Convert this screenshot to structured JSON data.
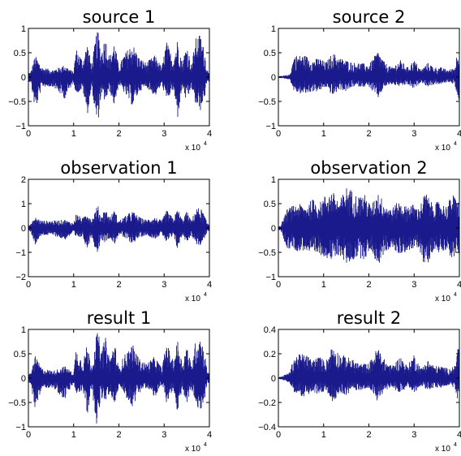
{
  "figure": {
    "x_multiplier": {
      "base": "x 10",
      "exponent": "4"
    }
  },
  "chart_data": [
    {
      "type": "line",
      "title": "source 1",
      "xlim": [
        0,
        4
      ],
      "ylim": [
        -1,
        1
      ],
      "x_ticks": [
        "0",
        "1",
        "2",
        "3",
        "4"
      ],
      "y_ticks": [
        "−1",
        "−0.5",
        "0",
        "0.5",
        "1"
      ],
      "y_tick_values": [
        -1,
        -0.5,
        0,
        0.5,
        1
      ],
      "color": "#1a1a8c",
      "envelope": {
        "x": [
          0.05,
          0.15,
          0.3,
          0.55,
          0.8,
          1.0,
          1.05,
          1.2,
          1.3,
          1.4,
          1.5,
          1.55,
          1.6,
          1.7,
          1.8,
          1.9,
          2.0,
          2.1,
          2.3,
          2.45,
          2.6,
          2.8,
          2.95,
          3.05,
          3.2,
          3.3,
          3.4,
          3.5,
          3.6,
          3.7,
          3.8,
          3.9,
          3.95
        ],
        "upper": [
          0.1,
          0.45,
          0.2,
          0.15,
          0.25,
          0.1,
          0.6,
          0.35,
          0.7,
          0.25,
          0.9,
          0.95,
          0.5,
          0.85,
          0.4,
          0.75,
          0.2,
          0.45,
          0.7,
          0.4,
          0.3,
          0.45,
          0.2,
          0.75,
          0.35,
          0.8,
          0.3,
          0.7,
          0.25,
          0.8,
          0.9,
          0.5,
          0.15
        ],
        "lower": [
          -0.1,
          -0.7,
          -0.2,
          -0.2,
          -0.45,
          -0.1,
          -0.35,
          -0.25,
          -0.8,
          -0.2,
          -0.95,
          -0.85,
          -0.4,
          -0.5,
          -0.3,
          -0.6,
          -0.15,
          -0.3,
          -0.6,
          -0.3,
          -0.2,
          -0.4,
          -0.15,
          -0.5,
          -0.25,
          -0.85,
          -0.2,
          -0.55,
          -0.2,
          -0.6,
          -0.7,
          -0.4,
          -0.1
        ]
      }
    },
    {
      "type": "line",
      "title": "source 2",
      "xlim": [
        0,
        4
      ],
      "ylim": [
        -1,
        1
      ],
      "x_ticks": [
        "0",
        "1",
        "2",
        "3",
        "4"
      ],
      "y_ticks": [
        "−1",
        "−0.5",
        "0",
        "0.5",
        "1"
      ],
      "y_tick_values": [
        -1,
        -0.5,
        0,
        0.5,
        1
      ],
      "color": "#1a1a8c",
      "envelope": {
        "x": [
          0.05,
          0.25,
          0.35,
          0.5,
          0.6,
          0.75,
          0.9,
          1.05,
          1.2,
          1.35,
          1.5,
          1.65,
          1.8,
          2.0,
          2.2,
          2.35,
          2.5,
          2.7,
          2.85,
          3.0,
          3.15,
          3.3,
          3.45,
          3.6,
          3.75,
          3.9,
          3.98
        ],
        "upper": [
          0.02,
          0.05,
          0.45,
          0.45,
          0.45,
          0.35,
          0.4,
          0.3,
          0.5,
          0.4,
          0.35,
          0.3,
          0.3,
          0.25,
          0.55,
          0.3,
          0.2,
          0.35,
          0.2,
          0.35,
          0.15,
          0.3,
          0.2,
          0.2,
          0.15,
          0.2,
          0.7
        ],
        "lower": [
          -0.02,
          -0.05,
          -0.3,
          -0.35,
          -0.35,
          -0.3,
          -0.3,
          -0.2,
          -0.4,
          -0.25,
          -0.3,
          -0.2,
          -0.2,
          -0.2,
          -0.45,
          -0.2,
          -0.15,
          -0.2,
          -0.15,
          -0.25,
          -0.1,
          -0.2,
          -0.15,
          -0.15,
          -0.1,
          -0.15,
          -0.6
        ]
      }
    },
    {
      "type": "line",
      "title": "observation 1",
      "xlim": [
        0,
        4
      ],
      "ylim": [
        -2,
        2
      ],
      "x_ticks": [
        "0",
        "1",
        "2",
        "3",
        "4"
      ],
      "y_ticks": [
        "−2",
        "−1",
        "0",
        "1",
        "2"
      ],
      "y_tick_values": [
        -2,
        -1,
        0,
        1,
        2
      ],
      "color": "#1a1a8c",
      "envelope": {
        "x": [
          0.05,
          0.15,
          0.3,
          0.55,
          0.8,
          1.0,
          1.05,
          1.2,
          1.3,
          1.4,
          1.5,
          1.55,
          1.6,
          1.7,
          1.8,
          1.9,
          2.0,
          2.1,
          2.3,
          2.45,
          2.6,
          2.8,
          2.95,
          3.05,
          3.2,
          3.3,
          3.4,
          3.5,
          3.6,
          3.7,
          3.8,
          3.9,
          3.95
        ],
        "upper": [
          0.15,
          0.45,
          0.3,
          0.3,
          0.35,
          0.2,
          0.6,
          0.4,
          0.7,
          0.35,
          0.85,
          0.9,
          0.5,
          0.8,
          0.45,
          0.75,
          0.3,
          0.45,
          0.7,
          0.45,
          0.35,
          0.45,
          0.3,
          0.75,
          0.4,
          0.8,
          0.35,
          0.7,
          0.3,
          0.8,
          0.85,
          0.5,
          0.2
        ],
        "lower": [
          -0.15,
          -0.7,
          -0.3,
          -0.3,
          -0.5,
          -0.2,
          -0.45,
          -0.35,
          -0.9,
          -0.3,
          -1.05,
          -0.95,
          -0.45,
          -0.6,
          -0.4,
          -0.7,
          -0.25,
          -0.4,
          -0.65,
          -0.4,
          -0.3,
          -0.45,
          -0.25,
          -0.6,
          -0.35,
          -0.9,
          -0.3,
          -0.6,
          -0.3,
          -0.65,
          -0.75,
          -0.45,
          -0.15
        ]
      }
    },
    {
      "type": "line",
      "title": "observation 2",
      "xlim": [
        0,
        4
      ],
      "ylim": [
        -1,
        1
      ],
      "x_ticks": [
        "0",
        "1",
        "2",
        "3",
        "4"
      ],
      "y_ticks": [
        "−1",
        "−0.5",
        "0",
        "0.5",
        "1"
      ],
      "y_tick_values": [
        -1,
        -0.5,
        0,
        0.5,
        1
      ],
      "color": "#1a1a8c",
      "envelope": {
        "x": [
          0.05,
          0.2,
          0.3,
          0.45,
          0.6,
          0.75,
          0.9,
          1.05,
          1.2,
          1.35,
          1.5,
          1.6,
          1.75,
          1.9,
          2.05,
          2.2,
          2.35,
          2.5,
          2.65,
          2.8,
          2.95,
          3.1,
          3.25,
          3.4,
          3.55,
          3.7,
          3.85,
          3.98
        ],
        "upper": [
          0.05,
          0.4,
          0.45,
          0.5,
          0.45,
          0.6,
          0.5,
          0.7,
          0.75,
          0.55,
          0.85,
          0.8,
          0.65,
          0.7,
          0.45,
          0.75,
          0.5,
          0.4,
          0.55,
          0.45,
          0.5,
          0.4,
          0.75,
          0.5,
          0.55,
          0.45,
          0.7,
          0.55
        ],
        "lower": [
          -0.05,
          -0.45,
          -0.4,
          -0.5,
          -0.45,
          -0.6,
          -0.55,
          -0.6,
          -0.7,
          -0.55,
          -0.75,
          -0.7,
          -0.6,
          -0.65,
          -0.45,
          -0.8,
          -0.5,
          -0.4,
          -0.55,
          -0.5,
          -0.45,
          -0.4,
          -0.85,
          -0.5,
          -0.5,
          -0.45,
          -0.65,
          -0.55
        ]
      }
    },
    {
      "type": "line",
      "title": "result 1",
      "xlim": [
        0,
        4
      ],
      "ylim": [
        -1,
        1
      ],
      "x_ticks": [
        "0",
        "1",
        "2",
        "3",
        "4"
      ],
      "y_ticks": [
        "−1",
        "−0.5",
        "0",
        "0.5",
        "1"
      ],
      "y_tick_values": [
        -1,
        -0.5,
        0,
        0.5,
        1
      ],
      "color": "#1a1a8c",
      "envelope": {
        "x": [
          0.05,
          0.15,
          0.3,
          0.55,
          0.8,
          1.0,
          1.05,
          1.2,
          1.3,
          1.4,
          1.5,
          1.55,
          1.6,
          1.7,
          1.8,
          1.9,
          2.0,
          2.1,
          2.3,
          2.45,
          2.6,
          2.8,
          2.95,
          3.05,
          3.2,
          3.3,
          3.4,
          3.5,
          3.6,
          3.7,
          3.8,
          3.9,
          3.95
        ],
        "upper": [
          0.1,
          0.45,
          0.2,
          0.15,
          0.25,
          0.1,
          0.6,
          0.35,
          0.7,
          0.25,
          0.9,
          0.95,
          0.5,
          0.85,
          0.4,
          0.75,
          0.2,
          0.45,
          0.7,
          0.4,
          0.3,
          0.45,
          0.2,
          0.75,
          0.35,
          0.8,
          0.3,
          0.7,
          0.25,
          0.8,
          0.9,
          0.5,
          0.15
        ],
        "lower": [
          -0.1,
          -0.7,
          -0.2,
          -0.2,
          -0.45,
          -0.1,
          -0.35,
          -0.25,
          -0.8,
          -0.2,
          -0.95,
          -0.85,
          -0.4,
          -0.5,
          -0.3,
          -0.6,
          -0.15,
          -0.3,
          -0.6,
          -0.3,
          -0.2,
          -0.4,
          -0.15,
          -0.5,
          -0.25,
          -0.85,
          -0.2,
          -0.55,
          -0.2,
          -0.6,
          -0.7,
          -0.4,
          -0.1
        ]
      }
    },
    {
      "type": "line",
      "title": "result 2",
      "xlim": [
        0,
        4
      ],
      "ylim": [
        -0.4,
        0.4
      ],
      "x_ticks": [
        "0",
        "1",
        "2",
        "3",
        "4"
      ],
      "y_ticks": [
        "−0.4",
        "−0.2",
        "0",
        "0.2",
        "0.4"
      ],
      "y_tick_values": [
        -0.4,
        -0.2,
        0,
        0.2,
        0.4
      ],
      "color": "#1a1a8c",
      "envelope": {
        "x": [
          0.05,
          0.25,
          0.35,
          0.5,
          0.6,
          0.75,
          0.9,
          1.05,
          1.2,
          1.35,
          1.5,
          1.65,
          1.8,
          2.0,
          2.2,
          2.35,
          2.5,
          2.7,
          2.85,
          3.0,
          3.15,
          3.3,
          3.45,
          3.6,
          3.75,
          3.9,
          3.98
        ],
        "upper": [
          0.01,
          0.05,
          0.18,
          0.2,
          0.2,
          0.15,
          0.18,
          0.14,
          0.28,
          0.2,
          0.18,
          0.15,
          0.12,
          0.12,
          0.26,
          0.15,
          0.1,
          0.18,
          0.1,
          0.2,
          0.08,
          0.15,
          0.1,
          0.1,
          0.08,
          0.1,
          0.3
        ],
        "lower": [
          -0.01,
          -0.04,
          -0.12,
          -0.15,
          -0.15,
          -0.12,
          -0.14,
          -0.1,
          -0.2,
          -0.12,
          -0.14,
          -0.1,
          -0.1,
          -0.08,
          -0.2,
          -0.1,
          -0.08,
          -0.12,
          -0.08,
          -0.12,
          -0.06,
          -0.1,
          -0.08,
          -0.08,
          -0.06,
          -0.08,
          -0.22
        ]
      }
    }
  ]
}
